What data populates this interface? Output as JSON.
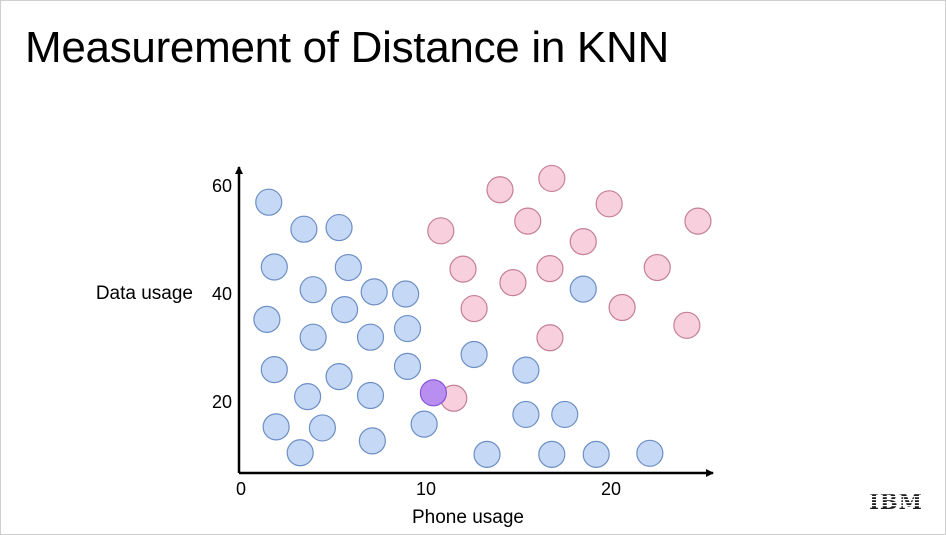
{
  "slide": {
    "title": "Measurement of Distance in KNN",
    "logo_text": "IBM"
  },
  "chart_data": {
    "type": "scatter",
    "xlabel": "Phone usage",
    "ylabel": "Data usage",
    "xticks": [
      0,
      10,
      20
    ],
    "yticks": [
      20,
      40,
      60
    ],
    "xlim": [
      0,
      25.5
    ],
    "ylim": [
      3.5,
      63
    ],
    "colors": {
      "blue_fill": "#c5d8f5",
      "blue_stroke": "#6d8fc4",
      "pink_fill": "#f8cfdd",
      "pink_stroke": "#c57f97",
      "purple_fill": "#b88ff0",
      "purple_stroke": "#8452d6"
    },
    "series": [
      {
        "color": "blue",
        "points": [
          [
            1.5,
            57
          ],
          [
            3.4,
            52
          ],
          [
            5.3,
            52.3
          ],
          [
            1.8,
            45
          ],
          [
            3.9,
            40.8
          ],
          [
            5.8,
            44.9
          ],
          [
            7.2,
            40.4
          ],
          [
            8.9,
            40
          ],
          [
            1.4,
            35.3
          ],
          [
            5.6,
            37.1
          ],
          [
            9,
            33.6
          ],
          [
            3.9,
            32
          ],
          [
            7,
            32
          ],
          [
            1.8,
            26
          ],
          [
            5.3,
            24.7
          ],
          [
            9,
            26.6
          ],
          [
            3.6,
            21
          ],
          [
            7,
            21.2
          ],
          [
            1.9,
            15.4
          ],
          [
            4.4,
            15.2
          ],
          [
            3.2,
            10.6
          ],
          [
            7.1,
            12.8
          ],
          [
            9.9,
            15.9
          ],
          [
            12.6,
            28.8
          ],
          [
            15.4,
            25.9
          ],
          [
            18.5,
            40.9
          ],
          [
            15.4,
            17.7
          ],
          [
            17.5,
            17.7
          ],
          [
            13.3,
            10.3
          ],
          [
            16.8,
            10.3
          ],
          [
            19.2,
            10.3
          ],
          [
            22.1,
            10.5
          ]
        ]
      },
      {
        "color": "pink",
        "points": [
          [
            14,
            59.3
          ],
          [
            16.8,
            61.4
          ],
          [
            15.5,
            53.5
          ],
          [
            19.9,
            56.7
          ],
          [
            24.7,
            53.5
          ],
          [
            10.8,
            51.7
          ],
          [
            18.5,
            49.7
          ],
          [
            12,
            44.6
          ],
          [
            14.7,
            42.1
          ],
          [
            16.7,
            44.7
          ],
          [
            22.5,
            44.9
          ],
          [
            12.6,
            37.3
          ],
          [
            20.6,
            37.5
          ],
          [
            24.1,
            34.2
          ],
          [
            16.7,
            31.9
          ],
          [
            11.5,
            20.7
          ]
        ]
      },
      {
        "color": "purple",
        "points": [
          [
            10.4,
            21.7
          ]
        ]
      }
    ]
  }
}
